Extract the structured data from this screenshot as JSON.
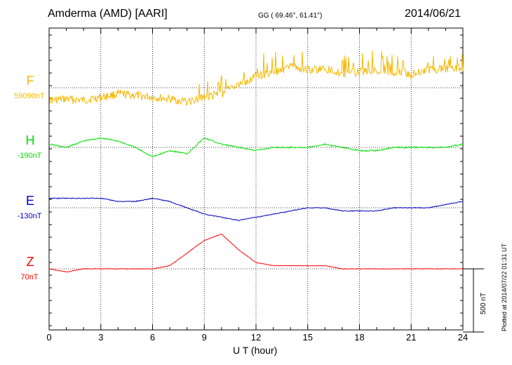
{
  "header": {
    "station": "Amderma (AMD)  [AARI]",
    "coords": "GG ( 69.46°,  61.41°)",
    "date": "2014/06/21"
  },
  "side_note": "Plotted at 2014/07/22 01:31  UT",
  "scale_bar": {
    "label": "500 nT",
    "value_nT": 500
  },
  "chart_data": {
    "type": "line",
    "xlabel": "U T (hour)",
    "xlim": [
      0,
      24
    ],
    "xticks": [
      "0",
      "3",
      "6",
      "9",
      "12",
      "15",
      "18",
      "21",
      "24"
    ],
    "grid": true,
    "series": [
      {
        "name": "F",
        "baseline_label": "59090nT",
        "color": "#f5b800",
        "values": [
          -20,
          -18,
          -20,
          -15,
          -10,
          -12,
          -15,
          -18,
          -22,
          -15,
          -10,
          5,
          18,
          25,
          32,
          28,
          30,
          22,
          25,
          28,
          25,
          22,
          28,
          30,
          32
        ]
      },
      {
        "name": "H",
        "baseline_label": "-190nT",
        "color": "#00e000",
        "values": [
          5,
          0,
          10,
          15,
          10,
          0,
          -15,
          -5,
          -10,
          15,
          5,
          0,
          -5,
          0,
          0,
          0,
          5,
          0,
          -5,
          -5,
          0,
          0,
          0,
          0,
          5
        ]
      },
      {
        "name": "E",
        "baseline_label": "-130nT",
        "color": "#0000c0",
        "values": [
          15,
          15,
          15,
          15,
          10,
          10,
          15,
          10,
          0,
          -10,
          -15,
          -20,
          -15,
          -10,
          -5,
          0,
          0,
          -5,
          -5,
          -5,
          0,
          0,
          0,
          5,
          10
        ]
      },
      {
        "name": "Z",
        "baseline_label": "70nT",
        "color": "#ff0000",
        "values": [
          0,
          -5,
          0,
          0,
          0,
          0,
          0,
          5,
          25,
          45,
          55,
          30,
          10,
          5,
          5,
          5,
          5,
          0,
          0,
          0,
          0,
          0,
          0,
          0,
          0
        ]
      }
    ]
  }
}
